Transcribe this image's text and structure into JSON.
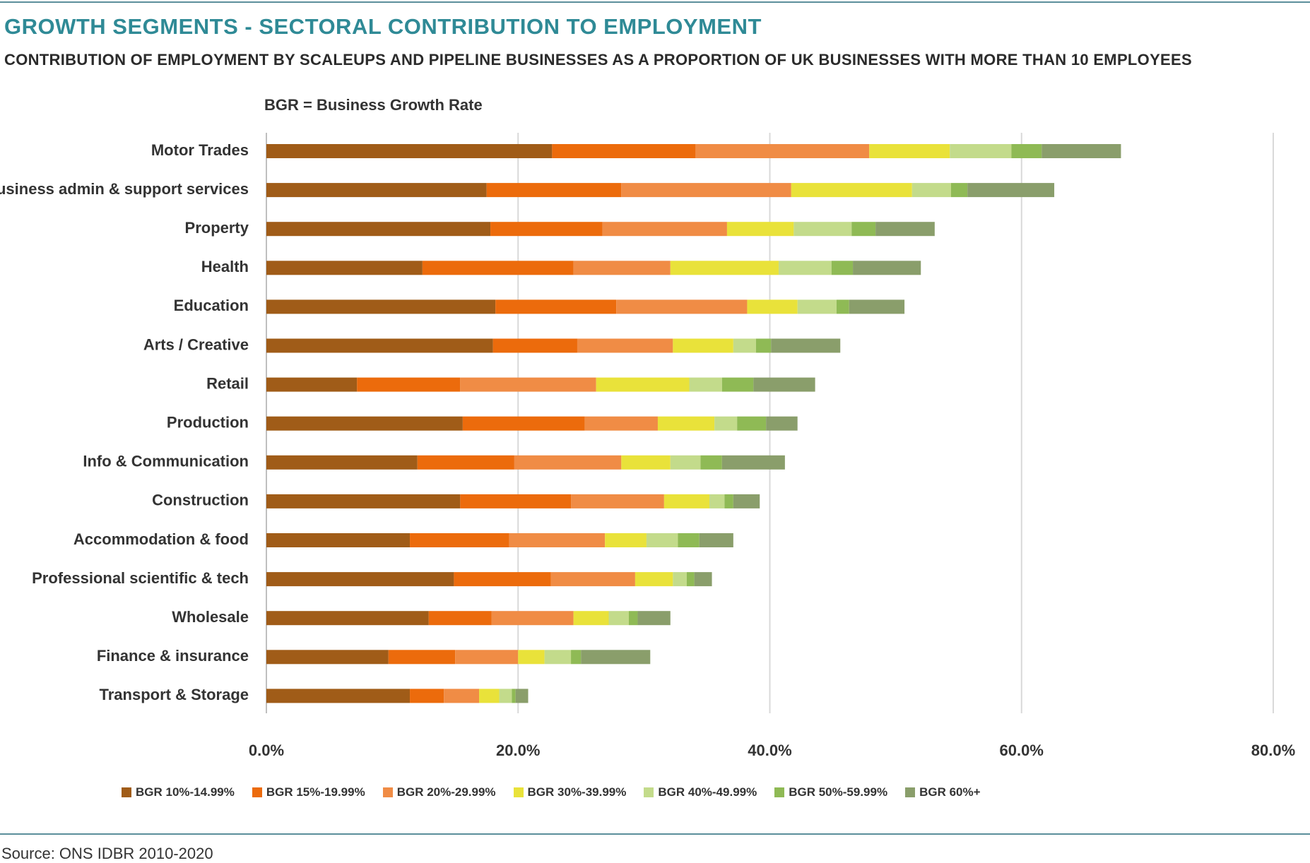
{
  "title": "GROWTH SEGMENTS - SECTORAL CONTRIBUTION TO EMPLOYMENT",
  "subtitle": "CONTRIBUTION OF EMPLOYMENT BY SCALEUPS AND PIPELINE BUSINESSES AS A PROPORTION OF UK BUSINESSES WITH MORE THAN 10 EMPLOYEES",
  "note": "BGR = Business Growth Rate",
  "source": "Source: ONS IDBR 2010-2020",
  "chart_data": {
    "type": "bar",
    "orientation": "horizontal",
    "stacked": true,
    "xlim": [
      0,
      80
    ],
    "x_ticks": [
      "0.0%",
      "20.0%",
      "40.0%",
      "60.0%",
      "80.0%"
    ],
    "x_tick_values": [
      0,
      20,
      40,
      60,
      80
    ],
    "grid": true,
    "legend_position": "bottom",
    "categories": [
      "Motor Trades",
      "Business admin & support services",
      "Property",
      "Health",
      "Education",
      "Arts / Creative",
      "Retail",
      "Production",
      "Info & Communication",
      "Construction",
      "Accommodation & food",
      "Professional scientific & tech",
      "Wholesale",
      "Finance & insurance",
      "Transport & Storage"
    ],
    "series": [
      {
        "name": "BGR 10%-14.99%",
        "color": "#a05c18",
        "values": [
          22.7,
          17.5,
          17.8,
          12.4,
          18.2,
          18.0,
          7.2,
          15.6,
          12.0,
          15.4,
          11.4,
          14.9,
          12.9,
          9.7,
          11.4
        ]
      },
      {
        "name": "BGR 15%-19.99%",
        "color": "#ec6b0c",
        "values": [
          11.4,
          10.7,
          8.9,
          12.0,
          9.6,
          6.7,
          8.2,
          9.7,
          7.7,
          8.8,
          7.9,
          7.7,
          5.0,
          5.3,
          2.7
        ]
      },
      {
        "name": "BGR 20%-29.99%",
        "color": "#f08c45",
        "values": [
          13.8,
          13.5,
          9.9,
          7.7,
          10.4,
          7.6,
          10.8,
          5.8,
          8.5,
          7.4,
          7.6,
          6.7,
          6.5,
          5.0,
          2.8
        ]
      },
      {
        "name": "BGR 30%-39.99%",
        "color": "#e9e23a",
        "values": [
          6.4,
          9.6,
          5.3,
          8.6,
          4.0,
          4.8,
          7.4,
          4.5,
          3.9,
          3.6,
          3.3,
          3.0,
          2.8,
          2.1,
          1.6
        ]
      },
      {
        "name": "BGR 40%-49.99%",
        "color": "#c3db8b",
        "values": [
          4.9,
          3.1,
          4.6,
          4.2,
          3.1,
          1.8,
          2.6,
          1.8,
          2.4,
          1.2,
          2.5,
          1.1,
          1.6,
          2.1,
          1.0
        ]
      },
      {
        "name": "BGR 50%-59.99%",
        "color": "#8fba55",
        "values": [
          2.4,
          1.3,
          1.9,
          1.7,
          1.0,
          1.2,
          2.5,
          2.3,
          1.7,
          0.7,
          1.7,
          0.6,
          0.7,
          0.8,
          0.3
        ]
      },
      {
        "name": "BGR 60%+",
        "color": "#8a9e6b",
        "values": [
          6.3,
          6.9,
          4.7,
          5.4,
          4.4,
          5.5,
          4.9,
          2.5,
          5.0,
          2.1,
          2.7,
          1.4,
          2.6,
          5.5,
          1.0
        ]
      }
    ]
  }
}
